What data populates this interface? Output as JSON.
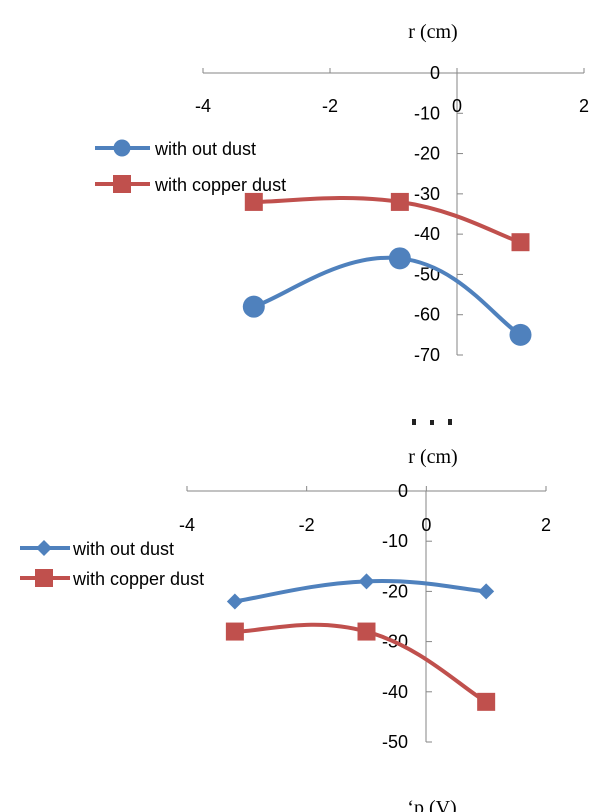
{
  "chart_data": [
    {
      "type": "line",
      "title": "r (cm)",
      "xlim": [
        -4,
        2
      ],
      "ylim": [
        -70,
        0
      ],
      "x_ticks": [
        "-4",
        "-2",
        "0",
        "2"
      ],
      "y_ticks": [
        "0",
        "-10",
        "-20",
        "-30",
        "-40",
        "-50",
        "-60",
        "-70"
      ],
      "legend": "top-left",
      "grid": false,
      "series": [
        {
          "name": "with out dust",
          "color": "#4F81BD",
          "marker": "circle",
          "x": [
            -3.2,
            -0.9,
            1.0
          ],
          "y": [
            -58,
            -46,
            -65
          ]
        },
        {
          "name": "with copper dust",
          "color": "#C0504D",
          "marker": "square",
          "x": [
            -3.2,
            -0.9,
            1.0
          ],
          "y": [
            -32,
            -32,
            -42
          ]
        }
      ]
    },
    {
      "type": "line",
      "title": "r (cm)",
      "xlim": [
        -4,
        2
      ],
      "ylim": [
        -50,
        0
      ],
      "x_ticks": [
        "-4",
        "-2",
        "0",
        "2"
      ],
      "y_ticks": [
        "0",
        "-10",
        "-20",
        "-30",
        "-40",
        "-50"
      ],
      "legend": "top-left",
      "grid": false,
      "series": [
        {
          "name": "with out dust",
          "color": "#4F81BD",
          "marker": "diamond",
          "x": [
            -3.2,
            -1.0,
            1.0
          ],
          "y": [
            -22,
            -18,
            -20
          ]
        },
        {
          "name": "with copper dust",
          "color": "#C0504D",
          "marker": "square",
          "x": [
            -3.2,
            -1.0,
            1.0
          ],
          "y": [
            -28,
            -28,
            -42
          ]
        }
      ]
    }
  ]
}
